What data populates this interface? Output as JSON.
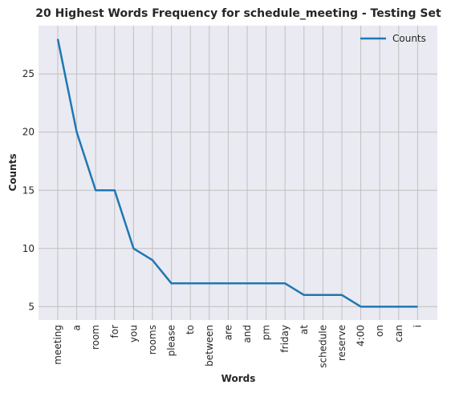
{
  "chart_data": {
    "type": "line",
    "title": "20 Highest Words Frequency for schedule_meeting - Testing Set",
    "xlabel": "Words",
    "ylabel": "Counts",
    "categories": [
      "meeting",
      "a",
      "room",
      "for",
      "you",
      "rooms",
      "please",
      "to",
      "between",
      "are",
      "and",
      "pm",
      "friday",
      "at",
      "schedule",
      "reserve",
      "4:00",
      "on",
      "can",
      "i"
    ],
    "series": [
      {
        "name": "Counts",
        "values": [
          28,
          20,
          15,
          15,
          10,
          9,
          7,
          7,
          7,
          7,
          7,
          7,
          7,
          6,
          6,
          6,
          5,
          5,
          5,
          5
        ]
      }
    ],
    "yticks": [
      5,
      10,
      15,
      20,
      25
    ],
    "ylim": [
      3.85,
      29.15
    ],
    "grid": true,
    "legend_position": "top-right",
    "colors": {
      "series": "#1f77b4",
      "background": "#eaeaf2",
      "grid": "#c0c0c0"
    }
  }
}
